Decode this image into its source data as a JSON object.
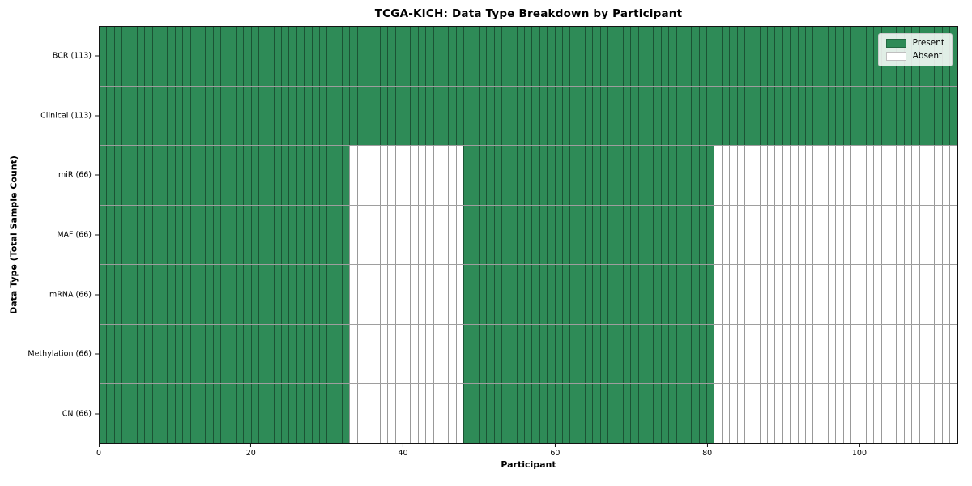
{
  "chart_data": {
    "type": "heatmap",
    "title": "TCGA-KICH: Data Type Breakdown by Participant",
    "xlabel": "Participant",
    "ylabel": "Data Type (Total Sample Count)",
    "xlim": [
      0,
      113
    ],
    "n_participants": 113,
    "x_ticks": [
      0,
      20,
      40,
      60,
      80,
      100
    ],
    "grid": false,
    "legend": {
      "position": "upper right",
      "entries": [
        {
          "label": "Present",
          "color": "#2e8b57"
        },
        {
          "label": "Absent",
          "color": "#ffffff"
        }
      ]
    },
    "rows": [
      {
        "label": "BCR (113)",
        "data_type": "BCR",
        "present_count": 113,
        "present_ranges": [
          [
            0,
            113
          ]
        ]
      },
      {
        "label": "Clinical (113)",
        "data_type": "Clinical",
        "present_count": 113,
        "present_ranges": [
          [
            0,
            113
          ]
        ]
      },
      {
        "label": "miR (66)",
        "data_type": "miR",
        "present_count": 66,
        "present_ranges": [
          [
            0,
            33
          ],
          [
            48,
            81
          ]
        ]
      },
      {
        "label": "MAF (66)",
        "data_type": "MAF",
        "present_count": 66,
        "present_ranges": [
          [
            0,
            33
          ],
          [
            48,
            81
          ]
        ]
      },
      {
        "label": "mRNA (66)",
        "data_type": "mRNA",
        "present_count": 66,
        "present_ranges": [
          [
            0,
            33
          ],
          [
            48,
            81
          ]
        ]
      },
      {
        "label": "Methylation (66)",
        "data_type": "Methylation",
        "present_count": 66,
        "present_ranges": [
          [
            0,
            33
          ],
          [
            48,
            81
          ]
        ]
      },
      {
        "label": "CN (66)",
        "data_type": "CN",
        "present_count": 66,
        "present_ranges": [
          [
            0,
            33
          ],
          [
            48,
            81
          ]
        ]
      }
    ],
    "colors": {
      "present": "#2e8b57",
      "absent": "#ffffff",
      "cell_edge": "rgba(0,0,0,0.40)",
      "spine": "#141414"
    }
  }
}
